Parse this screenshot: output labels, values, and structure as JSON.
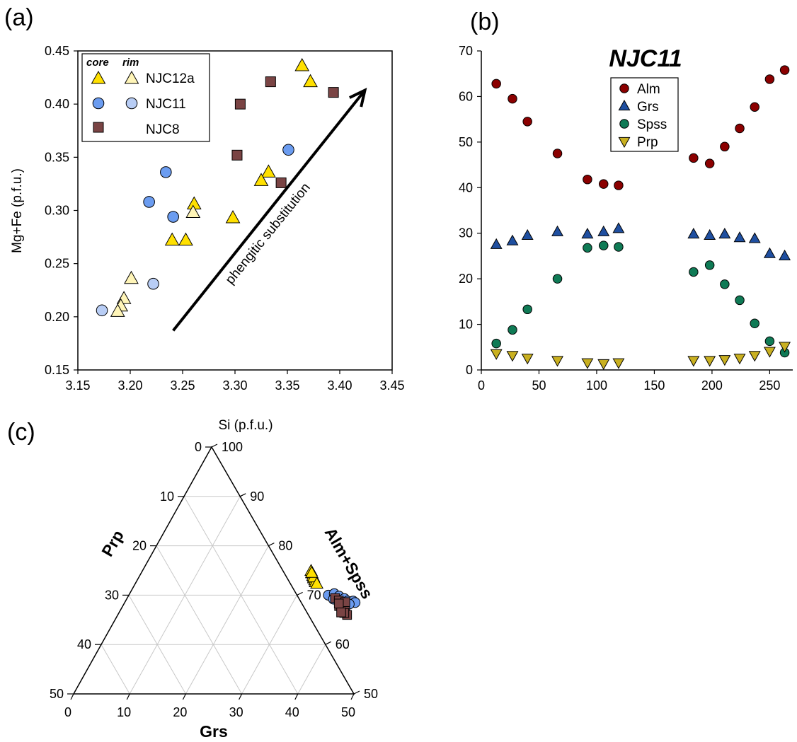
{
  "labels": {
    "a": "(a)",
    "b": "(b)",
    "c": "(c)"
  },
  "chart_data": [
    {
      "type": "scatter",
      "panel": "(a)",
      "ylabel": "Mg+Fe (p.f.u.)",
      "xlabel": "",
      "xlim": [
        3.15,
        3.45
      ],
      "ylim": [
        0.15,
        0.45
      ],
      "xticks": [
        "3.15",
        "3.20",
        "3.25",
        "3.30",
        "3.35",
        "3.40",
        "3.45"
      ],
      "yticks": [
        "0.15",
        "0.20",
        "0.25",
        "0.30",
        "0.35",
        "0.40",
        "0.45"
      ],
      "legend": {
        "placement": "top-left",
        "core_header": "core",
        "rim_header": "rim",
        "entries": [
          "NJC12a",
          "NJC11",
          "NJC8"
        ]
      },
      "annotation": "phengitic substitution",
      "arrow": {
        "from": [
          3.241,
          0.187
        ],
        "to": [
          3.424,
          0.413
        ]
      },
      "series": [
        {
          "name": "NJC12a",
          "kind": "core",
          "marker": "triangle",
          "color": "#ffe000",
          "x": [
            3.364,
            3.372,
            3.261,
            3.332,
            3.325,
            3.24,
            3.253,
            3.298
          ],
          "y": [
            0.436,
            0.421,
            0.306,
            0.336,
            0.328,
            0.272,
            0.272,
            0.293
          ]
        },
        {
          "name": "NJC12a",
          "kind": "rim",
          "marker": "triangle",
          "color": "#fff5b8",
          "x": [
            3.26,
            3.201,
            3.194,
            3.191,
            3.188
          ],
          "y": [
            0.298,
            0.236,
            0.217,
            0.21,
            0.205
          ]
        },
        {
          "name": "NJC11",
          "kind": "core",
          "marker": "circle",
          "color": "#6b9cf0",
          "x": [
            3.234,
            3.218,
            3.241,
            3.351
          ],
          "y": [
            0.336,
            0.308,
            0.294,
            0.357
          ]
        },
        {
          "name": "NJC11",
          "kind": "rim",
          "marker": "circle",
          "color": "#b8cdf5",
          "x": [
            3.222,
            3.173
          ],
          "y": [
            0.231,
            0.206
          ]
        },
        {
          "name": "NJC8",
          "kind": "core",
          "marker": "square",
          "color": "#7a4444",
          "x": [
            3.334,
            3.305,
            3.394,
            3.302,
            3.344
          ],
          "y": [
            0.421,
            0.4,
            0.411,
            0.352,
            0.326
          ]
        }
      ]
    },
    {
      "type": "scatter",
      "panel": "(b)",
      "title": "NJC11",
      "xlim": [
        0,
        270
      ],
      "ylim": [
        0,
        70
      ],
      "xticks": [
        "0",
        "50",
        "100",
        "150",
        "200",
        "250"
      ],
      "yticks": [
        "0",
        "10",
        "20",
        "30",
        "40",
        "50",
        "60",
        "70"
      ],
      "legend": {
        "placement": "top-center"
      },
      "x": [
        13,
        27,
        40,
        66,
        92,
        106,
        119,
        184,
        198,
        211,
        224,
        237,
        250,
        263
      ],
      "series": [
        {
          "name": "Alm",
          "marker": "circle",
          "color": "#8b0000",
          "values": [
            62.8,
            59.5,
            54.5,
            47.5,
            41.8,
            40.8,
            40.5,
            46.5,
            45.3,
            49.0,
            53.0,
            57.7,
            63.8,
            65.8
          ]
        },
        {
          "name": "Grs",
          "marker": "triangle",
          "color": "#1f4fa0",
          "values": [
            27.5,
            28.3,
            29.5,
            30.3,
            29.8,
            30.3,
            31.0,
            29.8,
            29.5,
            29.8,
            29.0,
            28.8,
            25.5,
            25.0
          ]
        },
        {
          "name": "Spss",
          "marker": "circle",
          "color": "#0f7a55",
          "values": [
            5.8,
            8.8,
            13.3,
            20.0,
            26.8,
            27.3,
            27.0,
            21.5,
            23.0,
            18.8,
            15.3,
            10.2,
            6.3,
            3.8
          ]
        },
        {
          "name": "Prp",
          "marker": "triangle-down",
          "color": "#c9b020",
          "values": [
            3.6,
            3.2,
            2.6,
            2.1,
            1.6,
            1.4,
            1.6,
            2.1,
            2.1,
            2.3,
            2.6,
            3.2,
            4.1,
            5.2
          ]
        }
      ]
    },
    {
      "type": "scatter",
      "subtype": "ternary",
      "panel": "(c)",
      "top_label": "Si (p.f.u.)",
      "left_axis": "Prp",
      "right_axis": "Alm+Spss",
      "bottom_axis": "Grs",
      "grs_ticks": [
        "0",
        "10",
        "20",
        "30",
        "40",
        "50"
      ],
      "prp_ticks": [
        "0",
        "10",
        "20",
        "30",
        "40",
        "50"
      ],
      "almspss_ticks": [
        "50",
        "60",
        "70",
        "80",
        "90",
        "100"
      ],
      "series": [
        {
          "name": "NJC12a",
          "marker": "triangle",
          "color": "#ffe000",
          "grs": [
            30.1,
            30.5,
            30.9,
            31.3,
            31.7,
            32.0,
            31.2,
            30.4,
            32.4
          ],
          "almspss": [
            74.9,
            74.4,
            73.9,
            73.4,
            73.0,
            72.6,
            73.6,
            74.5,
            72.3
          ]
        },
        {
          "name": "NJC11",
          "marker": "circle",
          "color": "#6b9cf0",
          "grs": [
            35.6,
            36.5,
            37.6,
            38.8,
            39.6,
            40.6,
            41.1,
            40.2,
            38.3,
            36.9,
            39.4
          ],
          "almspss": [
            70.0,
            70.3,
            69.8,
            69.3,
            68.8,
            68.8,
            68.5,
            68.2,
            68.6,
            69.2,
            67.9
          ]
        },
        {
          "name": "NJC8",
          "marker": "square",
          "color": "#7a4444",
          "grs": [
            37.1,
            38.0,
            38.6,
            39.4,
            40.1,
            40.9,
            39.3,
            38.3,
            40.2,
            39.6
          ],
          "almspss": [
            69.4,
            68.9,
            67.8,
            67.5,
            66.9,
            66.0,
            68.6,
            68.3,
            66.4,
            66.5
          ]
        }
      ]
    }
  ]
}
